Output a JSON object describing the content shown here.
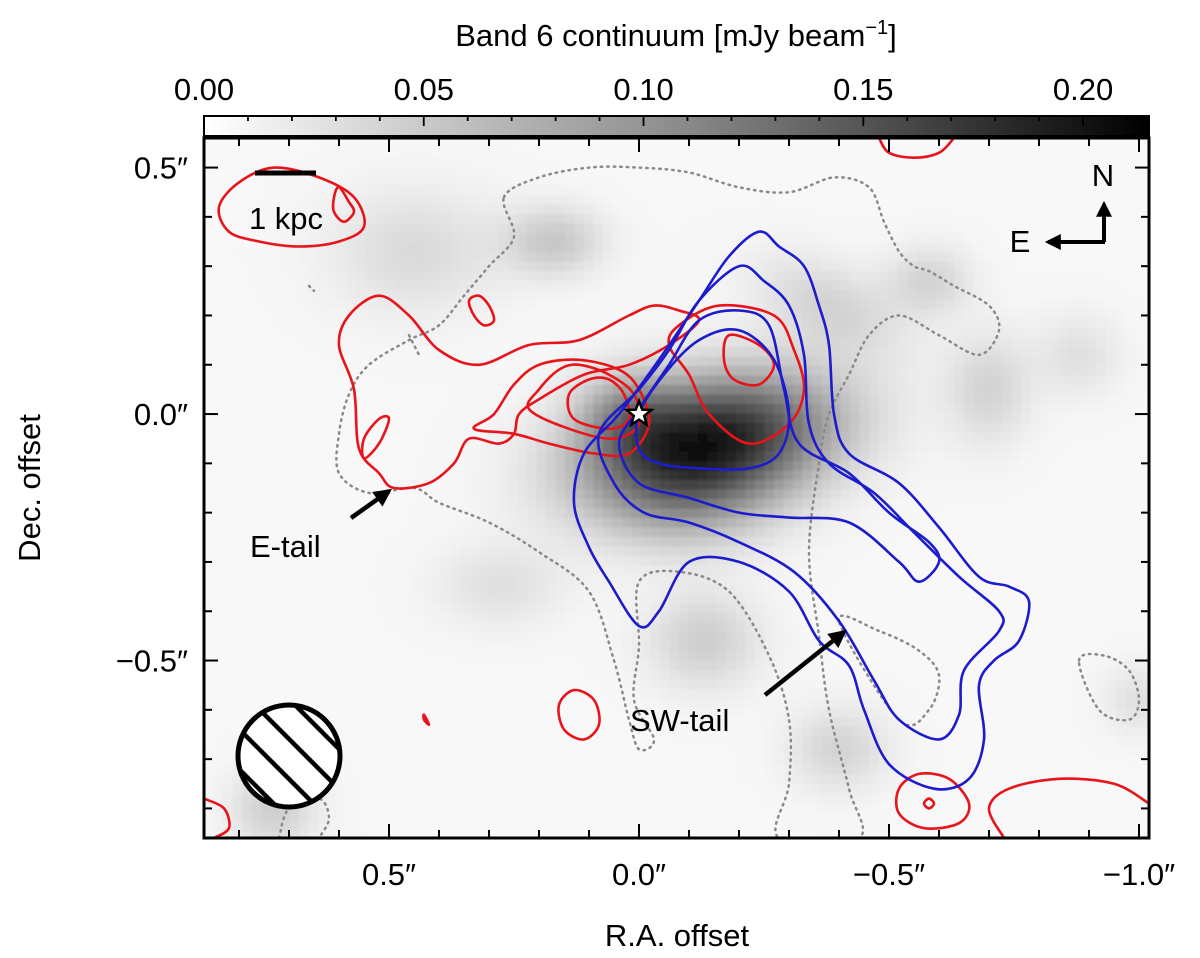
{
  "chart_data": {
    "type": "heatmap",
    "title": "",
    "colorbar": {
      "label": "Band 6 continuum [mJy beam",
      "label_exponent": "−1",
      "label_close": "]",
      "colormap": "gray_r",
      "range": [
        0.0,
        0.215
      ],
      "ticks": [
        0.0,
        0.05,
        0.1,
        0.15,
        0.2
      ],
      "tick_labels": [
        "0.00",
        "0.05",
        "0.10",
        "0.15",
        "0.20"
      ]
    },
    "xlabel": "R.A. offset",
    "ylabel": "Dec. offset",
    "xlim": [
      0.87,
      -1.02
    ],
    "ylim": [
      -0.86,
      0.56
    ],
    "x_inverted": true,
    "x_ticks": [
      0.5,
      0.0,
      -0.5,
      -1.0
    ],
    "x_tick_labels": [
      "0.5″",
      "0.0″",
      "−0.5″",
      "−1.0″"
    ],
    "y_ticks": [
      0.5,
      0.0,
      -0.5
    ],
    "y_tick_labels": [
      "0.5″",
      "0.0″",
      "−0.5″"
    ],
    "grid": false,
    "continuum_blobs": [
      {
        "x": -0.14,
        "y": -0.06,
        "sx": 0.17,
        "sy": 0.09,
        "rot": -12,
        "amp": 0.19
      },
      {
        "x": 0.02,
        "y": 0.0,
        "sx": 0.07,
        "sy": 0.06,
        "rot": 0,
        "amp": 0.05
      },
      {
        "x": -0.1,
        "y": -0.19,
        "sx": 0.12,
        "sy": 0.07,
        "rot": 0,
        "amp": 0.03
      },
      {
        "x": 0.17,
        "y": 0.35,
        "sx": 0.07,
        "sy": 0.05,
        "rot": 0,
        "amp": 0.04
      },
      {
        "x": -0.38,
        "y": 0.22,
        "sx": 0.11,
        "sy": 0.06,
        "rot": 25,
        "amp": 0.03
      },
      {
        "x": -0.58,
        "y": 0.27,
        "sx": 0.06,
        "sy": 0.05,
        "rot": 0,
        "amp": 0.03
      },
      {
        "x": -0.7,
        "y": 0.05,
        "sx": 0.06,
        "sy": 0.08,
        "rot": 0,
        "amp": 0.03
      },
      {
        "x": -0.13,
        "y": -0.46,
        "sx": 0.08,
        "sy": 0.07,
        "rot": 0,
        "amp": 0.035
      },
      {
        "x": -0.4,
        "y": -0.68,
        "sx": 0.07,
        "sy": 0.06,
        "rot": 0,
        "amp": 0.03
      },
      {
        "x": 0.28,
        "y": -0.35,
        "sx": 0.09,
        "sy": 0.06,
        "rot": 0,
        "amp": 0.02
      },
      {
        "x": 0.45,
        "y": 0.33,
        "sx": 0.12,
        "sy": 0.09,
        "rot": 0,
        "amp": 0.025
      },
      {
        "x": -0.88,
        "y": 0.12,
        "sx": 0.06,
        "sy": 0.06,
        "rot": 0,
        "amp": 0.02
      },
      {
        "x": 0.73,
        "y": -0.8,
        "sx": 0.06,
        "sy": 0.06,
        "rot": 0,
        "amp": 0.035
      },
      {
        "x": -1.0,
        "y": -0.58,
        "sx": 0.05,
        "sy": 0.05,
        "rot": 0,
        "amp": 0.02
      }
    ],
    "red_contours": [
      [
        [
          -0.12,
          0.19
        ],
        [
          -0.06,
          0.14
        ],
        [
          0.02,
          0.1
        ],
        [
          0.11,
          0.08
        ],
        [
          0.2,
          0.03
        ],
        [
          0.24,
          0.0
        ],
        [
          0.25,
          -0.04
        ],
        [
          0.28,
          -0.06
        ],
        [
          0.34,
          -0.05
        ],
        [
          0.37,
          -0.1
        ],
        [
          0.42,
          -0.14
        ],
        [
          0.49,
          -0.15
        ],
        [
          0.52,
          -0.12
        ],
        [
          0.56,
          -0.07
        ],
        [
          0.57,
          0.05
        ],
        [
          0.6,
          0.14
        ],
        [
          0.58,
          0.2
        ],
        [
          0.52,
          0.24
        ],
        [
          0.46,
          0.2
        ],
        [
          0.4,
          0.13
        ],
        [
          0.32,
          0.1
        ],
        [
          0.22,
          0.14
        ],
        [
          0.12,
          0.15
        ],
        [
          0.02,
          0.2
        ],
        [
          -0.03,
          0.22
        ],
        [
          -0.08,
          0.21
        ]
      ],
      [
        [
          0.2,
          0.1
        ],
        [
          0.25,
          0.06
        ],
        [
          0.29,
          0.0
        ],
        [
          0.33,
          -0.03
        ],
        [
          0.25,
          -0.04
        ],
        [
          0.18,
          -0.06
        ],
        [
          0.09,
          -0.08
        ],
        [
          0.02,
          -0.08
        ],
        [
          -0.02,
          -0.02
        ],
        [
          0.0,
          0.05
        ],
        [
          0.04,
          0.09
        ],
        [
          0.12,
          0.11
        ]
      ],
      [
        [
          0.16,
          0.09
        ],
        [
          0.2,
          0.05
        ],
        [
          0.22,
          0.01
        ],
        [
          0.14,
          -0.03
        ],
        [
          0.05,
          -0.05
        ],
        [
          0.0,
          -0.02
        ],
        [
          0.01,
          0.04
        ],
        [
          0.06,
          0.08
        ],
        [
          0.12,
          0.1
        ]
      ],
      [
        [
          0.1,
          0.07
        ],
        [
          0.14,
          0.04
        ],
        [
          0.13,
          -0.01
        ],
        [
          0.06,
          -0.03
        ],
        [
          0.02,
          -0.01
        ],
        [
          0.03,
          0.04
        ],
        [
          0.06,
          0.07
        ]
      ],
      [
        [
          -0.08,
          0.18
        ],
        [
          -0.16,
          0.22
        ],
        [
          -0.27,
          0.2
        ],
        [
          -0.31,
          0.13
        ],
        [
          -0.33,
          0.05
        ],
        [
          -0.3,
          -0.02
        ],
        [
          -0.22,
          -0.06
        ],
        [
          -0.14,
          0.0
        ],
        [
          -0.1,
          0.08
        ],
        [
          -0.06,
          0.14
        ]
      ],
      [
        [
          -0.18,
          0.16
        ],
        [
          -0.24,
          0.14
        ],
        [
          -0.27,
          0.1
        ],
        [
          -0.24,
          0.06
        ],
        [
          -0.19,
          0.07
        ],
        [
          -0.17,
          0.11
        ]
      ],
      [
        [
          0.52,
          -0.01
        ],
        [
          0.55,
          -0.05
        ],
        [
          0.55,
          -0.09
        ],
        [
          0.52,
          -0.06
        ],
        [
          0.5,
          -0.01
        ]
      ],
      [
        [
          0.32,
          0.24
        ],
        [
          0.3,
          0.22
        ],
        [
          0.29,
          0.19
        ],
        [
          0.31,
          0.18
        ],
        [
          0.33,
          0.2
        ],
        [
          0.34,
          0.23
        ]
      ],
      [
        [
          0.73,
          0.5
        ],
        [
          0.64,
          0.48
        ],
        [
          0.57,
          0.44
        ],
        [
          0.55,
          0.38
        ],
        [
          0.6,
          0.35
        ],
        [
          0.68,
          0.34
        ],
        [
          0.76,
          0.35
        ],
        [
          0.82,
          0.37
        ],
        [
          0.84,
          0.42
        ],
        [
          0.8,
          0.47
        ]
      ],
      [
        [
          0.6,
          0.46
        ],
        [
          0.58,
          0.43
        ],
        [
          0.57,
          0.41
        ],
        [
          0.59,
          0.39
        ],
        [
          0.61,
          0.41
        ],
        [
          0.61,
          0.44
        ]
      ],
      [
        [
          0.13,
          -0.56
        ],
        [
          0.16,
          -0.59
        ],
        [
          0.15,
          -0.64
        ],
        [
          0.11,
          -0.66
        ],
        [
          0.08,
          -0.63
        ],
        [
          0.09,
          -0.58
        ]
      ],
      [
        [
          0.43,
          -0.61
        ],
        [
          0.42,
          -0.63
        ],
        [
          0.43,
          -0.62
        ]
      ],
      [
        [
          -0.52,
          -0.76
        ],
        [
          -0.56,
          -0.73
        ],
        [
          -0.62,
          -0.74
        ],
        [
          -0.66,
          -0.79
        ],
        [
          -0.64,
          -0.83
        ],
        [
          -0.57,
          -0.84
        ],
        [
          -0.52,
          -0.81
        ]
      ],
      [
        [
          -0.58,
          -0.78
        ],
        [
          -0.59,
          -0.79
        ],
        [
          -0.58,
          -0.8
        ],
        [
          -0.57,
          -0.79
        ]
      ],
      [
        [
          -0.73,
          -0.86
        ],
        [
          -0.7,
          -0.8
        ],
        [
          -0.74,
          -0.76
        ],
        [
          -0.84,
          -0.74
        ],
        [
          -0.95,
          -0.75
        ],
        [
          -1.02,
          -0.79
        ]
      ],
      [
        [
          -0.48,
          0.56
        ],
        [
          -0.5,
          0.53
        ],
        [
          -0.55,
          0.52
        ],
        [
          -0.6,
          0.53
        ],
        [
          -0.63,
          0.56
        ]
      ],
      [
        [
          0.87,
          -0.78
        ],
        [
          0.83,
          -0.8
        ],
        [
          0.82,
          -0.84
        ],
        [
          0.85,
          -0.86
        ]
      ]
    ],
    "blue_contours": [
      [
        [
          -0.24,
          0.37
        ],
        [
          -0.28,
          0.34
        ],
        [
          -0.33,
          0.3
        ],
        [
          -0.36,
          0.22
        ],
        [
          -0.38,
          0.14
        ],
        [
          -0.39,
          0.0
        ],
        [
          -0.42,
          -0.08
        ],
        [
          -0.52,
          -0.14
        ],
        [
          -0.6,
          -0.23
        ],
        [
          -0.68,
          -0.33
        ],
        [
          -0.74,
          -0.35
        ],
        [
          -0.78,
          -0.38
        ],
        [
          -0.76,
          -0.46
        ],
        [
          -0.71,
          -0.5
        ],
        [
          -0.68,
          -0.55
        ],
        [
          -0.69,
          -0.66
        ],
        [
          -0.66,
          -0.74
        ],
        [
          -0.59,
          -0.76
        ],
        [
          -0.5,
          -0.71
        ],
        [
          -0.45,
          -0.6
        ],
        [
          -0.42,
          -0.51
        ],
        [
          -0.36,
          -0.46
        ],
        [
          -0.3,
          -0.36
        ],
        [
          -0.2,
          -0.3
        ],
        [
          -0.1,
          -0.3
        ],
        [
          -0.04,
          -0.4
        ],
        [
          0.0,
          -0.43
        ],
        [
          0.06,
          -0.34
        ],
        [
          0.1,
          -0.27
        ],
        [
          0.13,
          -0.18
        ],
        [
          0.11,
          -0.08
        ],
        [
          0.04,
          0.0
        ],
        [
          -0.04,
          0.11
        ],
        [
          -0.12,
          0.23
        ],
        [
          -0.18,
          0.32
        ]
      ],
      [
        [
          -0.2,
          0.3
        ],
        [
          -0.25,
          0.27
        ],
        [
          -0.3,
          0.22
        ],
        [
          -0.33,
          0.12
        ],
        [
          -0.34,
          -0.02
        ],
        [
          -0.38,
          -0.1
        ],
        [
          -0.47,
          -0.16
        ],
        [
          -0.55,
          -0.24
        ],
        [
          -0.64,
          -0.33
        ],
        [
          -0.72,
          -0.4
        ],
        [
          -0.72,
          -0.44
        ],
        [
          -0.65,
          -0.52
        ],
        [
          -0.64,
          -0.61
        ],
        [
          -0.6,
          -0.66
        ],
        [
          -0.52,
          -0.62
        ],
        [
          -0.47,
          -0.54
        ],
        [
          -0.4,
          -0.42
        ],
        [
          -0.31,
          -0.32
        ],
        [
          -0.2,
          -0.26
        ],
        [
          -0.1,
          -0.22
        ],
        [
          -0.01,
          -0.2
        ],
        [
          0.05,
          -0.14
        ],
        [
          0.08,
          -0.04
        ],
        [
          0.0,
          0.05
        ],
        [
          -0.06,
          0.13
        ],
        [
          -0.12,
          0.23
        ]
      ],
      [
        [
          -0.2,
          0.21
        ],
        [
          -0.26,
          0.18
        ],
        [
          -0.29,
          0.05
        ],
        [
          -0.32,
          -0.06
        ],
        [
          -0.42,
          -0.12
        ],
        [
          -0.5,
          -0.2
        ],
        [
          -0.58,
          -0.26
        ],
        [
          -0.6,
          -0.3
        ],
        [
          -0.56,
          -0.34
        ],
        [
          -0.52,
          -0.3
        ],
        [
          -0.42,
          -0.22
        ],
        [
          -0.3,
          -0.21
        ],
        [
          -0.2,
          -0.2
        ],
        [
          -0.1,
          -0.17
        ],
        [
          0.0,
          -0.14
        ],
        [
          0.04,
          -0.06
        ],
        [
          0.0,
          0.01
        ],
        [
          -0.06,
          0.1
        ],
        [
          -0.12,
          0.19
        ]
      ],
      [
        [
          -0.2,
          0.17
        ],
        [
          -0.27,
          0.11
        ],
        [
          -0.3,
          0.0
        ],
        [
          -0.28,
          -0.08
        ],
        [
          -0.22,
          -0.11
        ],
        [
          -0.12,
          -0.11
        ],
        [
          -0.04,
          -0.1
        ],
        [
          0.0,
          -0.07
        ],
        [
          0.0,
          0.0
        ],
        [
          -0.05,
          0.08
        ],
        [
          -0.12,
          0.15
        ]
      ]
    ],
    "dotted_contours": [
      [
        [
          0.27,
          0.44
        ],
        [
          0.2,
          0.48
        ],
        [
          0.1,
          0.5
        ],
        [
          0.0,
          0.5
        ],
        [
          -0.1,
          0.49
        ],
        [
          -0.2,
          0.46
        ],
        [
          -0.3,
          0.45
        ],
        [
          -0.39,
          0.48
        ],
        [
          -0.46,
          0.46
        ],
        [
          -0.49,
          0.39
        ],
        [
          -0.52,
          0.33
        ],
        [
          -0.55,
          0.3
        ],
        [
          -0.58,
          0.29
        ],
        [
          -0.63,
          0.26
        ],
        [
          -0.7,
          0.22
        ],
        [
          -0.72,
          0.17
        ],
        [
          -0.68,
          0.12
        ],
        [
          -0.6,
          0.16
        ],
        [
          -0.52,
          0.2
        ],
        [
          -0.46,
          0.16
        ],
        [
          -0.42,
          0.08
        ],
        [
          -0.38,
          0.0
        ],
        [
          -0.36,
          -0.1
        ],
        [
          -0.34,
          -0.28
        ],
        [
          -0.36,
          -0.45
        ],
        [
          -0.38,
          -0.6
        ],
        [
          -0.42,
          -0.76
        ],
        [
          -0.44,
          -0.86
        ],
        [
          -0.28,
          -0.86
        ],
        [
          -0.3,
          -0.75
        ],
        [
          -0.3,
          -0.62
        ],
        [
          -0.26,
          -0.49
        ],
        [
          -0.18,
          -0.36
        ],
        [
          -0.08,
          -0.32
        ],
        [
          0.0,
          -0.34
        ],
        [
          0.0,
          -0.47
        ],
        [
          0.01,
          -0.58
        ],
        [
          -0.03,
          -0.66
        ],
        [
          0.0,
          -0.68
        ],
        [
          0.02,
          -0.62
        ],
        [
          0.05,
          -0.5
        ],
        [
          0.1,
          -0.36
        ],
        [
          0.2,
          -0.28
        ],
        [
          0.3,
          -0.22
        ],
        [
          0.4,
          -0.18
        ],
        [
          0.45,
          -0.15
        ],
        [
          0.54,
          -0.16
        ],
        [
          0.6,
          -0.12
        ],
        [
          0.6,
          -0.04
        ],
        [
          0.58,
          0.04
        ],
        [
          0.54,
          0.1
        ],
        [
          0.46,
          0.15
        ],
        [
          0.4,
          0.18
        ],
        [
          0.35,
          0.24
        ],
        [
          0.3,
          0.3
        ],
        [
          0.25,
          0.36
        ]
      ],
      [
        [
          0.72,
          -0.86
        ],
        [
          0.7,
          -0.8
        ],
        [
          0.64,
          -0.78
        ],
        [
          0.62,
          -0.82
        ],
        [
          0.64,
          -0.86
        ]
      ],
      [
        [
          -0.88,
          -0.5
        ],
        [
          -0.93,
          -0.49
        ],
        [
          -0.98,
          -0.52
        ],
        [
          -1.0,
          -0.58
        ],
        [
          -0.98,
          -0.62
        ],
        [
          -0.92,
          -0.6
        ]
      ],
      [
        [
          -0.4,
          -0.42
        ],
        [
          -0.48,
          -0.44
        ],
        [
          -0.56,
          -0.48
        ],
        [
          -0.6,
          -0.53
        ],
        [
          -0.58,
          -0.6
        ],
        [
          -0.52,
          -0.62
        ]
      ],
      [
        [
          0.46,
          0.16
        ],
        [
          0.44,
          0.12
        ]
      ],
      [
        [
          0.66,
          0.26
        ],
        [
          0.65,
          0.25
        ]
      ]
    ],
    "center_marker": {
      "x": 0.0,
      "y": 0.0,
      "symbol": "star"
    },
    "annotations": {
      "scale_bar_label": "1 kpc",
      "compass_north": "N",
      "compass_east": "E",
      "e_tail_label": "E-tail",
      "sw_tail_label": "SW-tail"
    },
    "beam": {
      "x": 0.7,
      "y": -0.68,
      "major_arcsec": 0.21,
      "minor_arcsec": 0.21,
      "hatched": true
    },
    "colors": {
      "red_contour": "#e8141c",
      "blue_contour": "#1c1ccc",
      "dotted_contour": "#8a8a8a",
      "frame": "#000000"
    }
  }
}
